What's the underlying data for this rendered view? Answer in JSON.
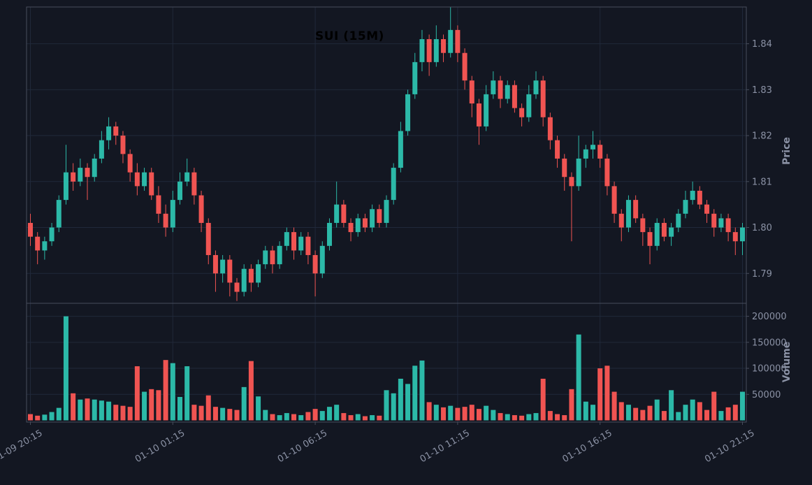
{
  "chart_data": {
    "type": "candlestick",
    "title": "SUI (15M)",
    "symbol": "SUI",
    "interval": "15M",
    "legend_position": "none",
    "grid": true,
    "price_axis": {
      "label": "Price",
      "ticks": [
        "1.84",
        "1.83",
        "1.82",
        "1.81",
        "1.80",
        "1.79"
      ],
      "tick_values": [
        1.84,
        1.83,
        1.82,
        1.81,
        1.8,
        1.79
      ],
      "range": [
        1.7835,
        1.848
      ]
    },
    "volume_axis": {
      "label": "Volume",
      "ticks": [
        "200000",
        "150000",
        "100000",
        "50000"
      ],
      "tick_values": [
        200000,
        150000,
        100000,
        50000
      ],
      "range": [
        0,
        225000
      ]
    },
    "x_axis": {
      "tick_labels": [
        "01-09 20:15",
        "01-10 01:15",
        "01-10 06:15",
        "01-10 11:15",
        "01-10 16:15",
        "01-10 21:15"
      ],
      "tick_indices": [
        0,
        20,
        40,
        60,
        80,
        100
      ]
    },
    "colors": {
      "background": "#131722",
      "up": "#2cb9a8",
      "down": "#f05452",
      "grid": "#20283a",
      "frame": "#474d5c",
      "text": "#8b92a5",
      "title": "#000000"
    },
    "candles": {
      "columns": [
        "open",
        "high",
        "low",
        "close",
        "volume"
      ],
      "rows": [
        [
          1.801,
          1.803,
          1.796,
          1.798,
          12000
        ],
        [
          1.798,
          1.799,
          1.792,
          1.795,
          9000
        ],
        [
          1.795,
          1.798,
          1.793,
          1.797,
          11000
        ],
        [
          1.797,
          1.801,
          1.796,
          1.8,
          16000
        ],
        [
          1.8,
          1.807,
          1.799,
          1.806,
          24000
        ],
        [
          1.806,
          1.818,
          1.805,
          1.812,
          200000
        ],
        [
          1.812,
          1.814,
          1.808,
          1.81,
          52000
        ],
        [
          1.81,
          1.815,
          1.809,
          1.813,
          40000
        ],
        [
          1.813,
          1.814,
          1.806,
          1.811,
          42000
        ],
        [
          1.811,
          1.816,
          1.81,
          1.815,
          40000
        ],
        [
          1.815,
          1.821,
          1.814,
          1.819,
          38000
        ],
        [
          1.819,
          1.824,
          1.817,
          1.822,
          36000
        ],
        [
          1.822,
          1.823,
          1.818,
          1.82,
          30000
        ],
        [
          1.82,
          1.821,
          1.814,
          1.816,
          28000
        ],
        [
          1.816,
          1.817,
          1.81,
          1.812,
          26000
        ],
        [
          1.812,
          1.814,
          1.807,
          1.809,
          104000
        ],
        [
          1.809,
          1.813,
          1.808,
          1.812,
          55000
        ],
        [
          1.812,
          1.813,
          1.806,
          1.807,
          60000
        ],
        [
          1.807,
          1.809,
          1.801,
          1.803,
          58000
        ],
        [
          1.803,
          1.805,
          1.798,
          1.8,
          116000
        ],
        [
          1.8,
          1.808,
          1.799,
          1.806,
          110000
        ],
        [
          1.806,
          1.812,
          1.805,
          1.81,
          45000
        ],
        [
          1.81,
          1.815,
          1.809,
          1.812,
          104000
        ],
        [
          1.812,
          1.813,
          1.805,
          1.807,
          30000
        ],
        [
          1.807,
          1.808,
          1.799,
          1.801,
          28000
        ],
        [
          1.801,
          1.802,
          1.792,
          1.794,
          48000
        ],
        [
          1.794,
          1.795,
          1.786,
          1.79,
          26000
        ],
        [
          1.79,
          1.794,
          1.788,
          1.793,
          24000
        ],
        [
          1.793,
          1.794,
          1.785,
          1.788,
          22000
        ],
        [
          1.788,
          1.789,
          1.784,
          1.786,
          20000
        ],
        [
          1.786,
          1.792,
          1.785,
          1.791,
          64000
        ],
        [
          1.791,
          1.792,
          1.786,
          1.788,
          114000
        ],
        [
          1.788,
          1.793,
          1.787,
          1.792,
          46000
        ],
        [
          1.792,
          1.796,
          1.791,
          1.795,
          20000
        ],
        [
          1.795,
          1.796,
          1.79,
          1.792,
          12000
        ],
        [
          1.792,
          1.797,
          1.791,
          1.796,
          10000
        ],
        [
          1.796,
          1.8,
          1.795,
          1.799,
          14000
        ],
        [
          1.799,
          1.8,
          1.793,
          1.795,
          12000
        ],
        [
          1.795,
          1.799,
          1.794,
          1.798,
          10000
        ],
        [
          1.798,
          1.799,
          1.792,
          1.794,
          16000
        ],
        [
          1.794,
          1.795,
          1.785,
          1.79,
          22000
        ],
        [
          1.79,
          1.797,
          1.789,
          1.796,
          18000
        ],
        [
          1.796,
          1.802,
          1.795,
          1.801,
          26000
        ],
        [
          1.801,
          1.81,
          1.8,
          1.805,
          30000
        ],
        [
          1.805,
          1.806,
          1.8,
          1.801,
          14000
        ],
        [
          1.801,
          1.802,
          1.797,
          1.799,
          10000
        ],
        [
          1.799,
          1.803,
          1.798,
          1.802,
          12000
        ],
        [
          1.802,
          1.803,
          1.799,
          1.8,
          8000
        ],
        [
          1.8,
          1.805,
          1.799,
          1.804,
          10000
        ],
        [
          1.804,
          1.805,
          1.8,
          1.801,
          9000
        ],
        [
          1.801,
          1.807,
          1.8,
          1.806,
          58000
        ],
        [
          1.806,
          1.814,
          1.805,
          1.813,
          52000
        ],
        [
          1.813,
          1.823,
          1.812,
          1.821,
          80000
        ],
        [
          1.821,
          1.83,
          1.82,
          1.829,
          70000
        ],
        [
          1.829,
          1.838,
          1.828,
          1.836,
          105000
        ],
        [
          1.836,
          1.843,
          1.834,
          1.841,
          115000
        ],
        [
          1.841,
          1.842,
          1.833,
          1.836,
          35000
        ],
        [
          1.836,
          1.844,
          1.835,
          1.841,
          30000
        ],
        [
          1.841,
          1.842,
          1.836,
          1.838,
          25000
        ],
        [
          1.838,
          1.848,
          1.837,
          1.843,
          28000
        ],
        [
          1.843,
          1.844,
          1.836,
          1.838,
          24000
        ],
        [
          1.838,
          1.839,
          1.83,
          1.832,
          26000
        ],
        [
          1.832,
          1.833,
          1.824,
          1.827,
          30000
        ],
        [
          1.827,
          1.828,
          1.818,
          1.822,
          22000
        ],
        [
          1.822,
          1.831,
          1.821,
          1.829,
          28000
        ],
        [
          1.829,
          1.834,
          1.828,
          1.832,
          20000
        ],
        [
          1.832,
          1.833,
          1.826,
          1.828,
          14000
        ],
        [
          1.828,
          1.832,
          1.827,
          1.831,
          12000
        ],
        [
          1.831,
          1.832,
          1.825,
          1.826,
          10000
        ],
        [
          1.826,
          1.827,
          1.822,
          1.824,
          9000
        ],
        [
          1.824,
          1.831,
          1.823,
          1.829,
          12000
        ],
        [
          1.829,
          1.834,
          1.828,
          1.832,
          14000
        ],
        [
          1.832,
          1.833,
          1.822,
          1.824,
          80000
        ],
        [
          1.824,
          1.825,
          1.817,
          1.819,
          18000
        ],
        [
          1.819,
          1.82,
          1.813,
          1.815,
          12000
        ],
        [
          1.815,
          1.816,
          1.808,
          1.811,
          10000
        ],
        [
          1.811,
          1.812,
          1.797,
          1.809,
          60000
        ],
        [
          1.809,
          1.82,
          1.808,
          1.815,
          165000
        ],
        [
          1.815,
          1.818,
          1.813,
          1.817,
          36000
        ],
        [
          1.817,
          1.821,
          1.815,
          1.818,
          30000
        ],
        [
          1.818,
          1.819,
          1.813,
          1.815,
          100000
        ],
        [
          1.815,
          1.816,
          1.807,
          1.809,
          105000
        ],
        [
          1.809,
          1.81,
          1.801,
          1.803,
          55000
        ],
        [
          1.803,
          1.804,
          1.797,
          1.8,
          35000
        ],
        [
          1.8,
          1.807,
          1.799,
          1.806,
          30000
        ],
        [
          1.806,
          1.807,
          1.801,
          1.802,
          24000
        ],
        [
          1.802,
          1.803,
          1.796,
          1.799,
          20000
        ],
        [
          1.799,
          1.8,
          1.792,
          1.796,
          28000
        ],
        [
          1.796,
          1.802,
          1.795,
          1.801,
          40000
        ],
        [
          1.801,
          1.802,
          1.797,
          1.798,
          18000
        ],
        [
          1.798,
          1.801,
          1.796,
          1.8,
          58000
        ],
        [
          1.8,
          1.804,
          1.799,
          1.803,
          16000
        ],
        [
          1.803,
          1.808,
          1.802,
          1.806,
          30000
        ],
        [
          1.806,
          1.81,
          1.805,
          1.808,
          40000
        ],
        [
          1.808,
          1.809,
          1.804,
          1.805,
          35000
        ],
        [
          1.805,
          1.806,
          1.801,
          1.803,
          20000
        ],
        [
          1.803,
          1.804,
          1.798,
          1.8,
          55000
        ],
        [
          1.8,
          1.803,
          1.799,
          1.802,
          18000
        ],
        [
          1.802,
          1.803,
          1.797,
          1.799,
          25000
        ],
        [
          1.799,
          1.8,
          1.794,
          1.797,
          30000
        ],
        [
          1.797,
          1.801,
          1.794,
          1.8,
          55000
        ]
      ]
    }
  }
}
